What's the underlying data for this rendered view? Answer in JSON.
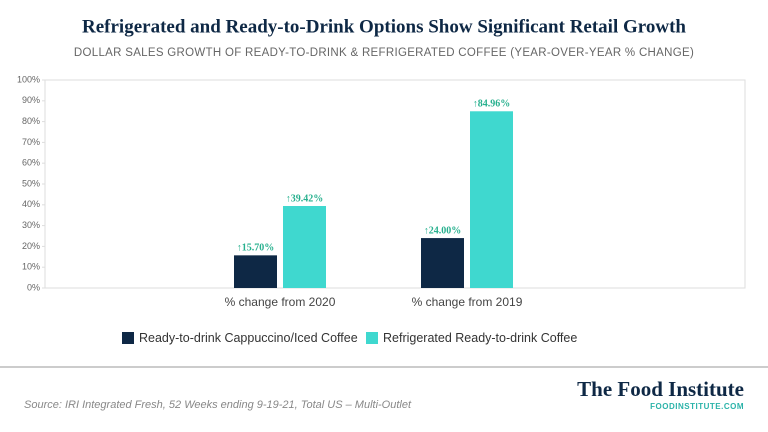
{
  "chart_data": {
    "type": "bar",
    "title": "Refrigerated and Ready-to-Drink Options Show Significant Retail Growth",
    "subtitle": "DOLLAR SALES GROWTH OF READY-TO-DRINK & REFRIGERATED COFFEE (YEAR-OVER-YEAR % CHANGE)",
    "categories": [
      "% change from 2020",
      "% change from 2019"
    ],
    "series": [
      {
        "name": "Ready-to-drink Cappuccino/Iced Coffee",
        "color": "#0e2845",
        "values": [
          15.7,
          24.0
        ],
        "value_labels": [
          "↑15.70%",
          "↑24.00%"
        ]
      },
      {
        "name": "Refrigerated Ready-to-drink Coffee",
        "color": "#3fd8cf",
        "values": [
          39.42,
          84.96
        ],
        "value_labels": [
          "↑39.42%",
          "↑84.96%"
        ]
      }
    ],
    "ylim": [
      0,
      100
    ],
    "yticks": [
      {
        "value": 0,
        "label": "0%"
      },
      {
        "value": 10,
        "label": "10%"
      },
      {
        "value": 20,
        "label": "20%"
      },
      {
        "value": 30,
        "label": "30%"
      },
      {
        "value": 40,
        "label": "40%"
      },
      {
        "value": 50,
        "label": "50%"
      },
      {
        "value": 60,
        "label": "60%"
      },
      {
        "value": 70,
        "label": "70%"
      },
      {
        "value": 80,
        "label": "80%"
      },
      {
        "value": 90,
        "label": "90%"
      },
      {
        "value": 100,
        "label": "100%"
      }
    ],
    "grid": false,
    "legend": "bottom",
    "source": "Source: IRI Integrated Fresh, 52 Weeks ending 9-19-21, Total US – Multi-Outlet",
    "brand": "The Food Institute",
    "brand_url": "FOODINSTITUTE.COM"
  }
}
